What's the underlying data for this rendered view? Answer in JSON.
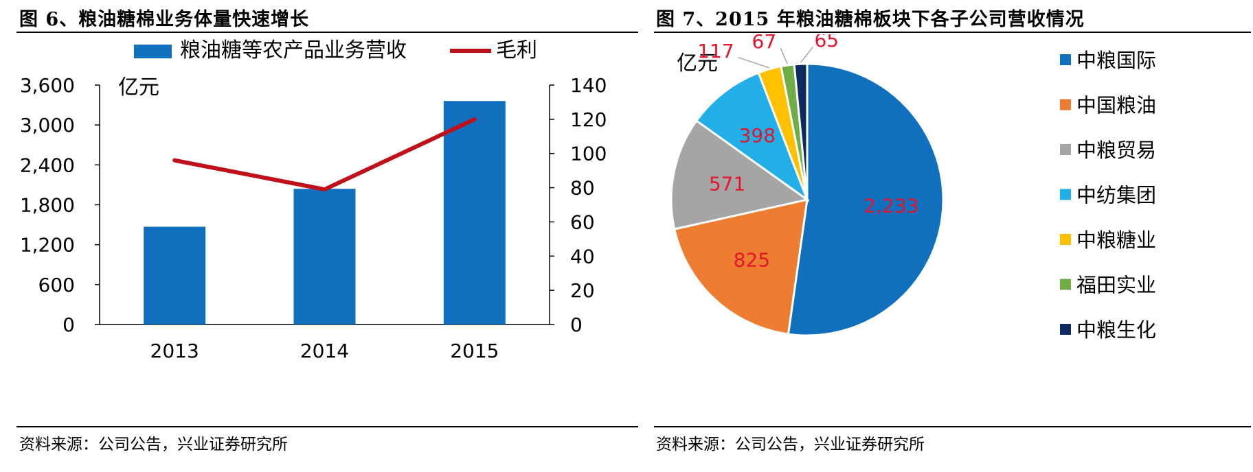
{
  "figures": [
    {
      "title": "图 6、粮油糖棉业务体量快速增长",
      "source": "资料来源：公司公告，兴业证券研究所"
    },
    {
      "title": "图 7、2015 年粮油糖棉板块下各子公司营收情况",
      "source": "资料来源：公司公告，兴业证券研究所"
    }
  ],
  "chart_data": [
    {
      "type": "bar",
      "categories": [
        "2013",
        "2014",
        "2015"
      ],
      "unit_label": "亿元",
      "series": [
        {
          "name": "粮油糖等农产品业务营收",
          "kind": "bar",
          "axis": "left",
          "color": "#1070BE",
          "values": [
            1470,
            2040,
            3360
          ]
        },
        {
          "name": "毛利",
          "kind": "line",
          "axis": "right",
          "color": "#C0101A",
          "values": [
            96,
            79,
            120
          ]
        }
      ],
      "y_left": {
        "min": 0,
        "max": 3600,
        "ticks": [
          0,
          600,
          1200,
          1800,
          2400,
          3000,
          3600
        ],
        "tick_labels": [
          "0",
          "600",
          "1,200",
          "1,800",
          "2,400",
          "3,000",
          "3,600"
        ]
      },
      "y_right": {
        "min": 0,
        "max": 140,
        "ticks": [
          0,
          20,
          40,
          60,
          80,
          100,
          120,
          140
        ],
        "tick_labels": [
          "0",
          "20",
          "40",
          "60",
          "80",
          "100",
          "120",
          "140"
        ]
      },
      "legend": "top",
      "grid": false
    },
    {
      "type": "pie",
      "unit_label": "亿元",
      "slices": [
        {
          "label": "中粮国际",
          "value": 2233,
          "value_label": "2,233",
          "color": "#1070BE"
        },
        {
          "label": "中国粮油",
          "value": 825,
          "value_label": "825",
          "color": "#ED7D31"
        },
        {
          "label": "中粮贸易",
          "value": 571,
          "value_label": "571",
          "color": "#A5A5A5"
        },
        {
          "label": "中纺集团",
          "value": 398,
          "value_label": "398",
          "color": "#22AEE6"
        },
        {
          "label": "中粮糖业",
          "value": 117,
          "value_label": "117",
          "color": "#FFC000"
        },
        {
          "label": "福田实业",
          "value": 67,
          "value_label": "67",
          "color": "#70AD47"
        },
        {
          "label": "中粮生化",
          "value": 65,
          "value_label": "65",
          "color": "#0F2A5C"
        }
      ],
      "value_label_color": "#E8132A",
      "legend": "right"
    }
  ]
}
